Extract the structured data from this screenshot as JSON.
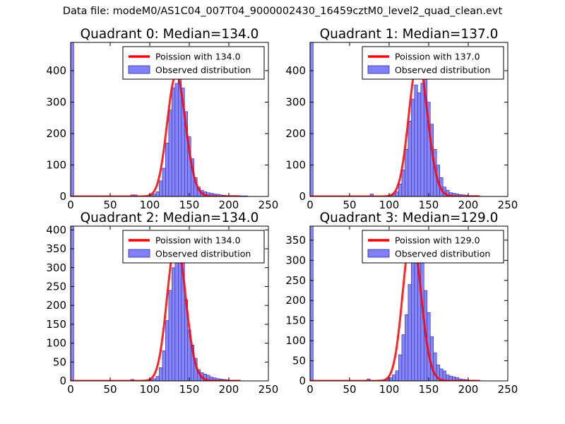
{
  "suptitle": "Data file: modeM0/AS1C04_007T04_9000002430_16459cztM0_level2_quad_clean.evt",
  "colors": {
    "poisson": "#ff0000",
    "hist_fill": "#8080f8",
    "hist_edge": "#2a2aa8",
    "axes": "#000000"
  },
  "chart_data": [
    {
      "type": "bar",
      "title": "Quadrant 0: Median=134.0",
      "median": 134,
      "xlim": [
        0,
        250
      ],
      "ylim": [
        0,
        490
      ],
      "xticks": [
        0,
        50,
        100,
        150,
        200,
        250
      ],
      "yticks": [
        0,
        100,
        200,
        300,
        400
      ],
      "legend_location": "top-right",
      "legend": {
        "line_label": "Poission with 134.0",
        "bar_label": "Observed distribution"
      },
      "bin_width": 4,
      "bins": [
        [
          0,
          490
        ],
        [
          76,
          5
        ],
        [
          80,
          5
        ],
        [
          100,
          3
        ],
        [
          104,
          8
        ],
        [
          108,
          15
        ],
        [
          112,
          50
        ],
        [
          116,
          90
        ],
        [
          120,
          170
        ],
        [
          124,
          275
        ],
        [
          128,
          345
        ],
        [
          132,
          360
        ],
        [
          136,
          380
        ],
        [
          140,
          345
        ],
        [
          144,
          270
        ],
        [
          148,
          190
        ],
        [
          152,
          120
        ],
        [
          156,
          60
        ],
        [
          160,
          30
        ],
        [
          164,
          20
        ],
        [
          168,
          15
        ],
        [
          172,
          12
        ],
        [
          176,
          10
        ],
        [
          180,
          8
        ],
        [
          184,
          7
        ],
        [
          188,
          5
        ],
        [
          192,
          4
        ],
        [
          196,
          3
        ],
        [
          200,
          3
        ],
        [
          204,
          3
        ],
        [
          208,
          3
        ],
        [
          212,
          2
        ],
        [
          216,
          2
        ],
        [
          220,
          2
        ]
      ]
    },
    {
      "type": "bar",
      "title": "Quadrant 1: Median=137.0",
      "median": 137,
      "xlim": [
        0,
        250
      ],
      "ylim": [
        0,
        490
      ],
      "xticks": [
        0,
        50,
        100,
        150,
        200,
        250
      ],
      "yticks": [
        0,
        100,
        200,
        300,
        400
      ],
      "legend_location": "top-right",
      "legend": {
        "line_label": "Poission with 137.0",
        "bar_label": "Observed distribution"
      },
      "bin_width": 4,
      "bins": [
        [
          0,
          490
        ],
        [
          76,
          8
        ],
        [
          100,
          3
        ],
        [
          104,
          8
        ],
        [
          108,
          15
        ],
        [
          112,
          40
        ],
        [
          116,
          85
        ],
        [
          120,
          150
        ],
        [
          124,
          240
        ],
        [
          128,
          310
        ],
        [
          132,
          355
        ],
        [
          136,
          330
        ],
        [
          140,
          360
        ],
        [
          144,
          425
        ],
        [
          148,
          300
        ],
        [
          152,
          230
        ],
        [
          156,
          150
        ],
        [
          160,
          100
        ],
        [
          164,
          60
        ],
        [
          168,
          30
        ],
        [
          172,
          20
        ],
        [
          176,
          12
        ],
        [
          180,
          10
        ],
        [
          184,
          8
        ],
        [
          188,
          6
        ],
        [
          192,
          5
        ],
        [
          196,
          4
        ],
        [
          200,
          3
        ],
        [
          204,
          3
        ],
        [
          208,
          3
        ]
      ]
    },
    {
      "type": "bar",
      "title": "Quadrant 2: Median=134.0",
      "median": 134,
      "xlim": [
        0,
        250
      ],
      "ylim": [
        0,
        410
      ],
      "xticks": [
        0,
        50,
        100,
        150,
        200,
        250
      ],
      "yticks": [
        0,
        50,
        100,
        150,
        200,
        250,
        300,
        350,
        400
      ],
      "legend_location": "top-right",
      "legend": {
        "line_label": "Poission with 134.0",
        "bar_label": "Observed distribution"
      },
      "bin_width": 4,
      "bins": [
        [
          0,
          410
        ],
        [
          76,
          4
        ],
        [
          100,
          3
        ],
        [
          104,
          6
        ],
        [
          108,
          12
        ],
        [
          112,
          35
        ],
        [
          116,
          80
        ],
        [
          120,
          160
        ],
        [
          124,
          240
        ],
        [
          128,
          300
        ],
        [
          132,
          340
        ],
        [
          136,
          365
        ],
        [
          140,
          325
        ],
        [
          144,
          215
        ],
        [
          148,
          135
        ],
        [
          152,
          95
        ],
        [
          156,
          60
        ],
        [
          160,
          30
        ],
        [
          164,
          22
        ],
        [
          168,
          18
        ],
        [
          172,
          15
        ],
        [
          176,
          10
        ],
        [
          180,
          8
        ],
        [
          184,
          6
        ],
        [
          188,
          5
        ],
        [
          192,
          4
        ],
        [
          196,
          3
        ],
        [
          200,
          2
        ],
        [
          204,
          2
        ],
        [
          208,
          2
        ]
      ]
    },
    {
      "type": "bar",
      "title": "Quadrant 3: Median=129.0",
      "median": 129,
      "xlim": [
        0,
        250
      ],
      "ylim": [
        0,
        385
      ],
      "xticks": [
        0,
        50,
        100,
        150,
        200,
        250
      ],
      "yticks": [
        0,
        50,
        100,
        150,
        200,
        250,
        300,
        350
      ],
      "legend_location": "top-right",
      "legend": {
        "line_label": "Poission with 129.0",
        "bar_label": "Observed distribution"
      },
      "bin_width": 4,
      "bins": [
        [
          0,
          385
        ],
        [
          72,
          5
        ],
        [
          96,
          5
        ],
        [
          100,
          8
        ],
        [
          104,
          15
        ],
        [
          108,
          25
        ],
        [
          112,
          65
        ],
        [
          116,
          115
        ],
        [
          120,
          165
        ],
        [
          124,
          240
        ],
        [
          128,
          300
        ],
        [
          132,
          360
        ],
        [
          136,
          350
        ],
        [
          140,
          315
        ],
        [
          144,
          225
        ],
        [
          148,
          170
        ],
        [
          152,
          110
        ],
        [
          156,
          70
        ],
        [
          160,
          40
        ],
        [
          164,
          30
        ],
        [
          168,
          25
        ],
        [
          172,
          15
        ],
        [
          176,
          12
        ],
        [
          180,
          10
        ],
        [
          184,
          8
        ],
        [
          188,
          5
        ],
        [
          192,
          4
        ],
        [
          196,
          3
        ],
        [
          200,
          2
        ],
        [
          204,
          2
        ]
      ]
    }
  ]
}
